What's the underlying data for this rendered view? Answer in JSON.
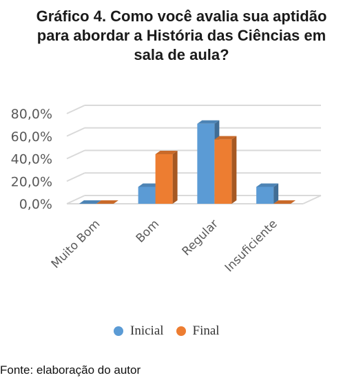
{
  "title_lines": [
    "Gráfico 4. Como você avalia sua aptidão",
    "para abordar a História das Ciências em",
    "sala de aula?"
  ],
  "source": "Fonte: elaboração do autor",
  "colors": {
    "Inicial": "#5B9BD5",
    "Final": "#ED7D31"
  },
  "chart_data": {
    "type": "bar",
    "title": "Gráfico 4. Como você avalia sua aptidão para abordar a História das Ciências em sala de aula?",
    "categories": [
      "Muito Bom",
      "Bom",
      "Regular",
      "Insuficiente"
    ],
    "series": [
      {
        "name": "Inicial",
        "values": [
          0,
          15,
          71,
          15
        ]
      },
      {
        "name": "Final",
        "values": [
          0,
          44,
          57,
          0
        ]
      }
    ],
    "yticks": [
      "0,0%",
      "20,0%",
      "40,0%",
      "60,0%",
      "80,0%"
    ],
    "ylim": [
      0,
      80
    ],
    "grid": true,
    "legend": "bottom"
  }
}
